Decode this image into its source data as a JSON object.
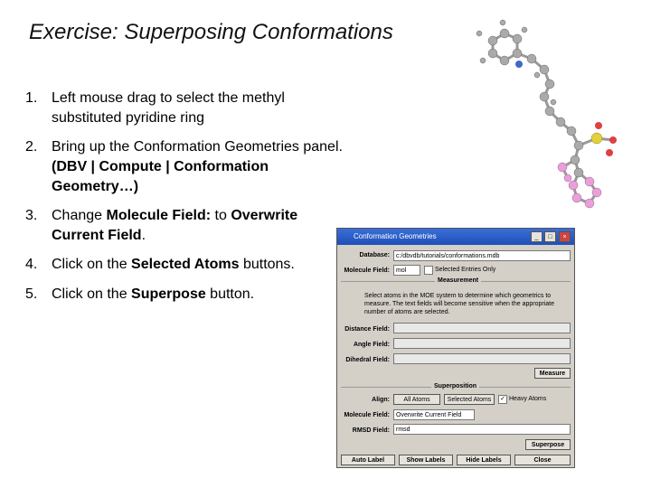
{
  "title": "Exercise: Superposing Conformations",
  "steps": [
    {
      "number": "1.",
      "lines": [
        [
          {
            "text": "Left mouse drag to select the methyl"
          }
        ],
        [
          {
            "text": "substituted pyridine ring"
          }
        ]
      ]
    },
    {
      "number": "2.",
      "lines": [
        [
          {
            "text": "Bring up the Conformation Geometries panel."
          }
        ],
        [
          {
            "text": "(DBV | Compute | Conformation",
            "bold": true
          }
        ],
        [
          {
            "text": "Geometry…)",
            "bold": true
          }
        ]
      ]
    },
    {
      "number": "3.",
      "lines": [
        [
          {
            "text": "Change "
          },
          {
            "text": "Molecule Field:",
            "bold": true
          },
          {
            "text": " to "
          },
          {
            "text": "Overwrite",
            "bold": true
          }
        ],
        [
          {
            "text": "Current Field",
            "bold": true
          },
          {
            "text": "."
          }
        ]
      ]
    },
    {
      "number": "4.",
      "lines": [
        [
          {
            "text": "Click on the "
          },
          {
            "text": "Selected Atoms",
            "bold": true
          },
          {
            "text": " buttons."
          }
        ]
      ]
    },
    {
      "number": "5.",
      "lines": [
        [
          {
            "text": "Click on the "
          },
          {
            "text": "Superpose",
            "bold": true
          },
          {
            "text": " button."
          }
        ]
      ]
    }
  ],
  "dialog": {
    "title": "Conformation Geometries",
    "database_label": "Database:",
    "database_value": "c:/dbvdb/tutorials/conformations.mdb",
    "molecule_field_label": "Molecule Field:",
    "molecule_field_value": "mol",
    "selected_entries": "Selected Entries Only",
    "measurement": "Measurement",
    "description": "Select atoms in the MOE system to determine which geometrics to measure. The text fields will become sensitive when the appropriate number of atoms are selected.",
    "distance_label": "Distance Field:",
    "angle_label": "Angle Field:",
    "dihedral_label": "Dihedral Field:",
    "measure": "Measure",
    "superposition": "Superposition",
    "align_label": "Align:",
    "all_atoms": "All Atoms",
    "selected_atoms": "Selected Atoms",
    "heavy_atoms": "Heavy Atoms",
    "molecule_field2_label": "Molecule Field:",
    "molecule_field2_value": "Overwrite Current Field",
    "rmsd_label": "RMSD Field:",
    "rmsd_value": "rmsd",
    "superpose": "Superpose",
    "buttons": [
      "Auto Label",
      "Show Labels",
      "Hide Labels",
      "Close"
    ]
  }
}
